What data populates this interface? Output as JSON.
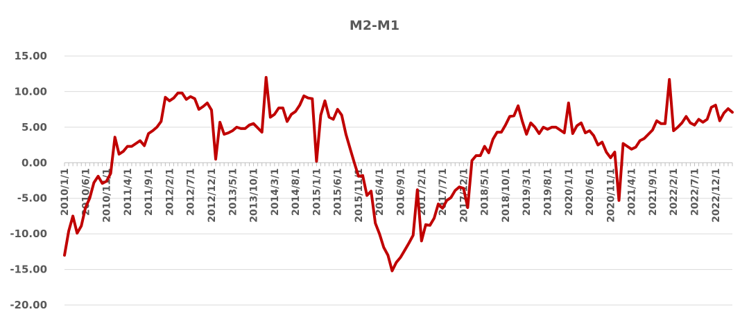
{
  "chart_data": {
    "type": "line",
    "title": "M2-M1",
    "xlabel": "",
    "ylabel": "",
    "ylim": [
      -20,
      15
    ],
    "y_ticks": [
      "15.00",
      "10.00",
      "5.00",
      "0.00",
      "-5.00",
      "-10.00",
      "-15.00",
      "-20.00"
    ],
    "y_tick_values": [
      15,
      10,
      5,
      0,
      -5,
      -10,
      -15,
      -20
    ],
    "x_tick_labels": [
      "2010/1/1",
      "2010/6/1",
      "2010/11/1",
      "2011/4/1",
      "2011/9/1",
      "2012/2/1",
      "2012/7/1",
      "2012/12/1",
      "2013/5/1",
      "2013/10/1",
      "2014/3/1",
      "2014/8/1",
      "2015/1/1",
      "2015/6/1",
      "2015/11/1",
      "2016/4/1",
      "2016/9/1",
      "2017/2/1",
      "2017/7/1",
      "2017/12/1",
      "2018/5/1",
      "2018/10/1",
      "2019/3/1",
      "2019/8/1",
      "2020/1/1",
      "2020/6/1",
      "2020/11/1",
      "2021/4/1",
      "2021/9/1",
      "2022/2/1",
      "2022/7/1",
      "2022/12/1"
    ],
    "grid": true,
    "legend": "none",
    "line_color": "#c00000",
    "series": [
      {
        "values": [
          -13.0,
          -9.6,
          -7.5,
          -9.9,
          -8.9,
          -6.3,
          -5.0,
          -2.8,
          -1.9,
          -2.9,
          -2.6,
          -1.5,
          3.6,
          1.2,
          1.6,
          2.3,
          2.3,
          2.7,
          3.1,
          2.4,
          4.1,
          4.5,
          5.0,
          5.8,
          9.2,
          8.7,
          9.1,
          9.8,
          9.8,
          8.9,
          9.3,
          9.0,
          7.5,
          7.9,
          8.4,
          7.4,
          0.5,
          5.7,
          4.0,
          4.2,
          4.5,
          5.0,
          4.8,
          4.8,
          5.3,
          5.5,
          4.9,
          4.3,
          12.0,
          6.4,
          6.8,
          7.7,
          7.7,
          5.8,
          6.8,
          7.2,
          8.1,
          9.4,
          9.1,
          9.0,
          0.2,
          6.7,
          8.7,
          6.4,
          6.1,
          7.5,
          6.7,
          4.0,
          2.0,
          0.0,
          -1.9,
          -1.8,
          -4.6,
          -4.0,
          -8.5,
          -10.0,
          -11.9,
          -13.0,
          -15.2,
          -14.0,
          -13.3,
          -12.3,
          -11.3,
          -10.2,
          -3.8,
          -11.0,
          -8.7,
          -8.8,
          -7.8,
          -5.8,
          -6.4,
          -5.3,
          -4.9,
          -3.9,
          -3.4,
          -3.6,
          -6.3,
          0.3,
          1.0,
          1.0,
          2.3,
          1.4,
          3.3,
          4.3,
          4.3,
          5.3,
          6.5,
          6.6,
          8.0,
          5.8,
          4.0,
          5.6,
          5.0,
          4.1,
          5.0,
          4.7,
          5.0,
          5.0,
          4.6,
          4.2,
          8.4,
          4.1,
          5.2,
          5.6,
          4.2,
          4.5,
          3.8,
          2.5,
          2.9,
          1.5,
          0.7,
          1.5,
          -5.3,
          2.7,
          2.3,
          1.9,
          2.2,
          3.1,
          3.4,
          4.0,
          4.6,
          5.9,
          5.5,
          5.5,
          11.7,
          4.5,
          5.0,
          5.6,
          6.5,
          5.6,
          5.3,
          6.1,
          5.7,
          6.1,
          7.8,
          8.1,
          5.9,
          7.0,
          7.6,
          7.1
        ]
      }
    ]
  }
}
